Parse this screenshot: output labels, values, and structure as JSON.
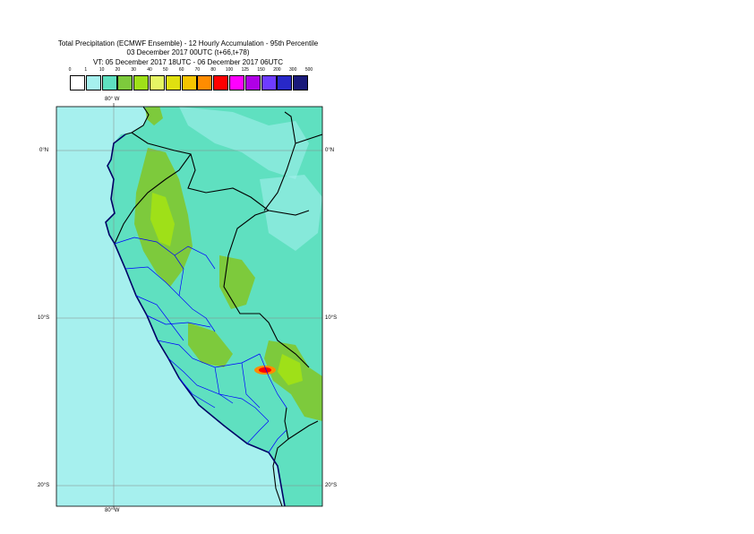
{
  "title": {
    "line1": "Total Precipitation (ECMWF Ensemble) - 12 Hourly Accumulation - 95th Percentile",
    "line2": "03 December 2017 00UTC (t+66,t+78)",
    "line3": "VT: 05 December 2017 18UTC - 06 December 2017 06UTC"
  },
  "legend": {
    "ticks": [
      "0",
      "1",
      "10",
      "20",
      "30",
      "40",
      "50",
      "60",
      "70",
      "80",
      "100",
      "125",
      "150",
      "200",
      "300",
      "500"
    ],
    "colors": [
      "#ffffff",
      "#a6f0ee",
      "#5fe0c0",
      "#7dca3c",
      "#9fe018",
      "#e6f564",
      "#e0e010",
      "#f5c400",
      "#ff8c00",
      "#ff0000",
      "#ff00ff",
      "#b000e6",
      "#6e3cff",
      "#2828c8",
      "#1a1a7a"
    ]
  },
  "axes": {
    "lon_top": "80° W",
    "lon_bottom": "80° W",
    "lat_left": [
      "0°N",
      "10°S",
      "20°S"
    ],
    "lat_right": [
      "0°N",
      "10°S",
      "20°S"
    ]
  },
  "colors": {
    "sea": "#a6f0ee",
    "land": "#5fe0c0",
    "border": "#000000",
    "admin": "#0000ff",
    "coast": "#000066",
    "gridline": "#888888"
  }
}
